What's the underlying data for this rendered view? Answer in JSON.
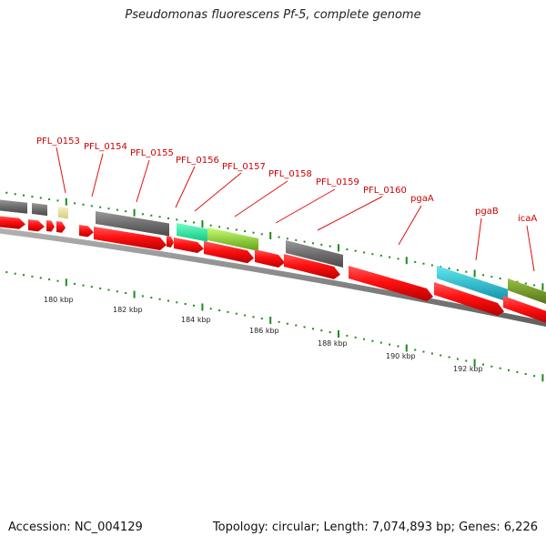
{
  "title": "Pseudomonas fluorescens Pf-5, complete genome",
  "footer": {
    "accession": "Accession: NC_004129",
    "stats": "Topology: circular; Length: 7,074,893 bp; Genes: 6,226"
  },
  "gene_labels": [
    "PFL_0153",
    "PFL_0154",
    "PFL_0155",
    "PFL_0156",
    "PFL_0157",
    "PFL_0158",
    "PFL_0159",
    "PFL_0160",
    "pgaA",
    "pgaB",
    "icaA"
  ],
  "scale_labels": [
    "180 kbp",
    "182 kbp",
    "184 kbp",
    "186 kbp",
    "188 kbp",
    "190 kbp",
    "192 kbp"
  ],
  "colors": {
    "cds": "#ff1010",
    "gray_feature": "#707070",
    "pale_feature": "#eee4a0",
    "green_feature": "#20f0a0",
    "lime_feature": "#88dd22",
    "cyan_feature": "#20c8d8",
    "olive_feature": "#6e9a20",
    "backbone": "#8a8a8a",
    "ticks": "#1e8a1e",
    "label_red": "#cc0000"
  }
}
